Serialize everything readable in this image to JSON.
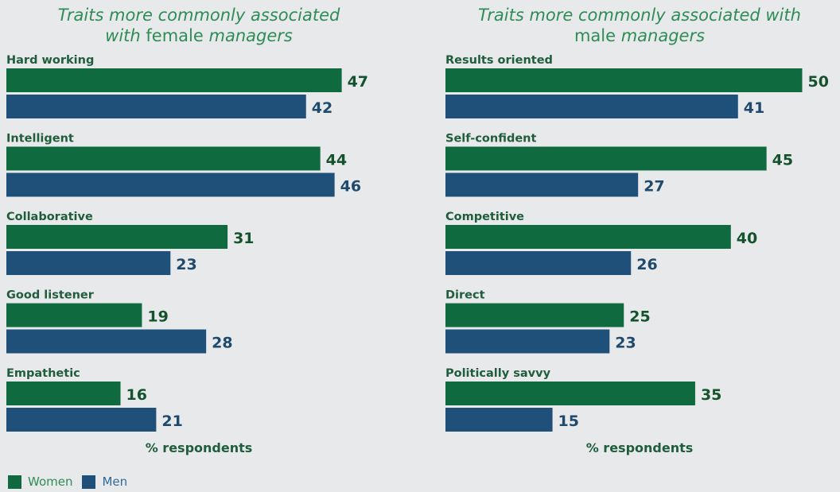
{
  "colors": {
    "women": "#0f6b3f",
    "men": "#1f5079",
    "women_text": "#14532d",
    "men_text": "#1f4a6e"
  },
  "legend": {
    "women": "Women",
    "men": "Men"
  },
  "chart_data": [
    {
      "type": "bar",
      "orientation": "horizontal",
      "title_parts": [
        "Traits more commonly associated",
        "with",
        "female",
        "managers"
      ],
      "xlabel": "% respondents",
      "categories": [
        "Hard working",
        "Intelligent",
        "Collaborative",
        "Good listener",
        "Empathetic"
      ],
      "series": [
        {
          "name": "Women",
          "values": [
            47,
            44,
            31,
            19,
            16
          ]
        },
        {
          "name": "Men",
          "values": [
            42,
            46,
            23,
            28,
            21
          ]
        }
      ],
      "xlim": [
        0,
        50
      ],
      "grid": false
    },
    {
      "type": "bar",
      "orientation": "horizontal",
      "title_parts": [
        "Traits more commonly associated with",
        "male",
        "managers"
      ],
      "xlabel": "% respondents",
      "categories": [
        "Results oriented",
        "Self-confident",
        "Competitive",
        "Direct",
        "Politically savvy"
      ],
      "series": [
        {
          "name": "Women",
          "values": [
            50,
            45,
            40,
            25,
            35
          ]
        },
        {
          "name": "Men",
          "values": [
            41,
            27,
            26,
            23,
            15
          ]
        }
      ],
      "xlim": [
        0,
        50
      ],
      "grid": false
    }
  ]
}
